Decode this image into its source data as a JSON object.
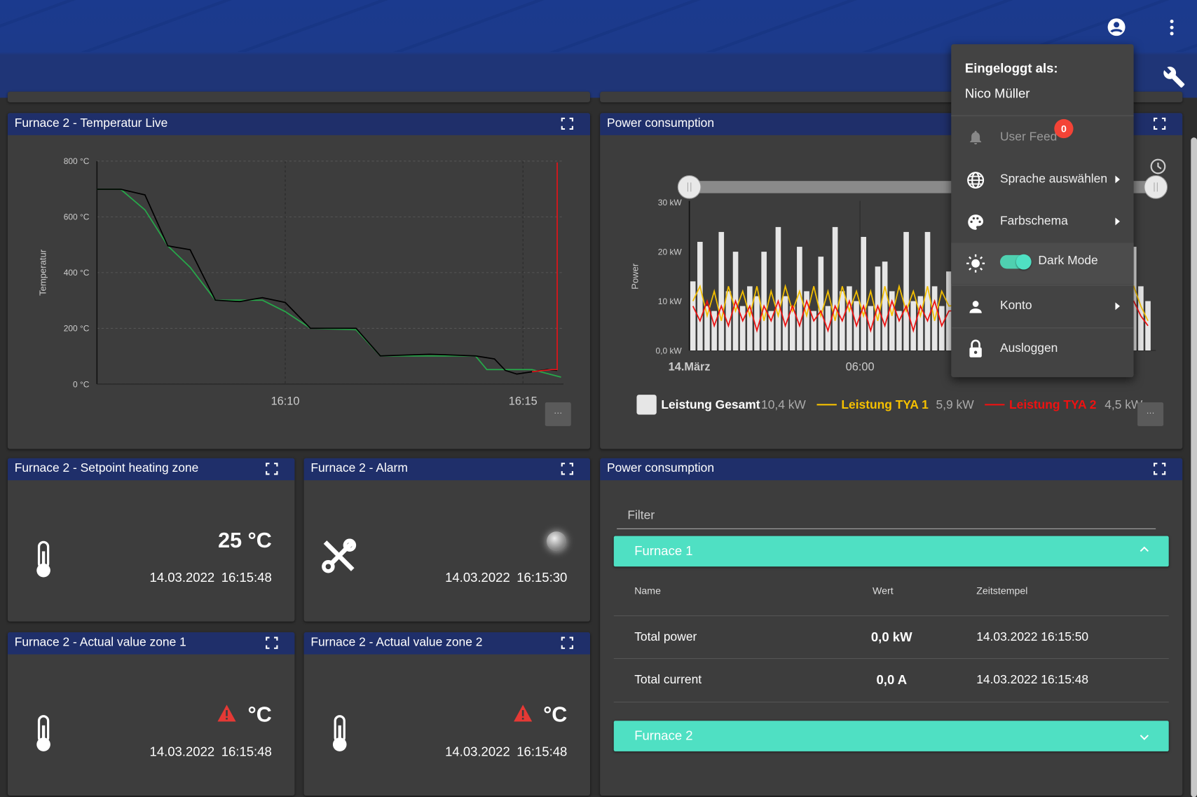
{
  "menu": {
    "heading": "Eingeloggt als:",
    "user": "Nico Müller",
    "items": [
      {
        "label": "User Feed",
        "badge": "0"
      },
      {
        "label": "Sprache auswählen"
      },
      {
        "label": "Farbschema"
      },
      {
        "label": "Dark Mode"
      },
      {
        "label": "Konto"
      },
      {
        "label": "Ausloggen"
      }
    ]
  },
  "chart_data": [
    {
      "type": "line",
      "title": "Furnace 2 - Temperatur Live",
      "y_label": "Temperatur",
      "xlim": [
        6.04,
        15.85
      ],
      "ylim": [
        0,
        800
      ],
      "xticks": [
        {
          "value": 10,
          "label": "16:10"
        },
        {
          "value": 15,
          "label": "16:15"
        }
      ],
      "yticks": [
        {
          "value": 0,
          "label": "0 °C"
        },
        {
          "value": 200,
          "label": "200 °C"
        },
        {
          "value": 400,
          "label": "400 °C"
        },
        {
          "value": 600,
          "label": "600 °C"
        },
        {
          "value": 800,
          "label": "800 °C"
        }
      ],
      "grid": true,
      "series": [
        {
          "color": "#27a84a",
          "x": [
            6.04,
            6.54,
            7.05,
            7.53,
            8.0,
            8.53,
            9.52,
            10.0,
            10.53,
            11.49,
            12.0,
            14.0,
            14.24,
            15.19,
            15.8
          ],
          "values": [
            699,
            699,
            625,
            496,
            419,
            301,
            301,
            260,
            200,
            195,
            101,
            101,
            52,
            52,
            25
          ]
        },
        {
          "color": "#000000",
          "x": [
            6.04,
            6.54,
            7.05,
            7.53,
            8.0,
            8.53,
            9.04,
            9.52,
            10.0,
            10.53,
            11.49,
            12.0,
            13.04,
            14.0,
            14.4,
            14.63,
            14.87,
            15.19,
            15.51,
            15.72
          ],
          "values": [
            699,
            699,
            679,
            496,
            482,
            301,
            296,
            310,
            293,
            200,
            200,
            101,
            107,
            101,
            90,
            49,
            36,
            44,
            52,
            49
          ]
        },
        {
          "color": "#e0141a",
          "x": [
            15.19,
            15.6,
            15.72,
            15.72
          ],
          "values": [
            44,
            52,
            52,
            795
          ]
        }
      ]
    },
    {
      "type": "bar",
      "title": "Power consumption",
      "y_label": "Power",
      "xlim": [
        0,
        16.4
      ],
      "ylim": [
        0,
        30
      ],
      "xticks": [
        {
          "value": 0,
          "label": "14.März"
        },
        {
          "value": 6,
          "label": "06:00"
        }
      ],
      "yticks": [
        {
          "value": 0,
          "label": "0,0 kW"
        },
        {
          "value": 10,
          "label": "10 kW"
        },
        {
          "value": 20,
          "label": "20 kW"
        },
        {
          "value": 30,
          "label": "30 kW"
        }
      ],
      "grid": false,
      "x": [
        0.125,
        0.375,
        0.625,
        0.875,
        1.125,
        1.375,
        1.625,
        1.875,
        2.125,
        2.375,
        2.625,
        2.875,
        3.125,
        3.375,
        3.625,
        3.875,
        4.125,
        4.375,
        4.625,
        4.875,
        5.125,
        5.375,
        5.625,
        5.875,
        6.125,
        6.375,
        6.625,
        6.875,
        7.125,
        7.375,
        7.625,
        7.875,
        8.125,
        8.375,
        8.625,
        8.875,
        9.125,
        15.625,
        15.875,
        16.125
      ],
      "series": [
        {
          "name": "Leistung Gesamt",
          "kind": "bar",
          "color": "#e6e6e6",
          "legend_value": "10,4 kW",
          "values": [
            14,
            22,
            9,
            8,
            24,
            12,
            20,
            9,
            13,
            11,
            20,
            8,
            25,
            11,
            9,
            21,
            12,
            8,
            19,
            9,
            25,
            12,
            13,
            10,
            23,
            9,
            17,
            18,
            12,
            8,
            24,
            10,
            11,
            24,
            13,
            9,
            16,
            21,
            13,
            10
          ]
        },
        {
          "name": "Leistung TYA 1",
          "kind": "line",
          "color": "#f5c000",
          "legend_value": "5,9 kW",
          "values": [
            10,
            13,
            7,
            12,
            6,
            13,
            8,
            12,
            7,
            13,
            6,
            12,
            7,
            13,
            8,
            12,
            7,
            13,
            7,
            12,
            6,
            13,
            8,
            12,
            7,
            12,
            6,
            13,
            7,
            13,
            8,
            12,
            7,
            13,
            6,
            12,
            9,
            13,
            9,
            6
          ]
        },
        {
          "name": "Leistung TYA 2",
          "kind": "line",
          "color": "#ee1111",
          "legend_value": "4,5 kW",
          "values": [
            9,
            6,
            10,
            5,
            9,
            5,
            10,
            6,
            9,
            4,
            9,
            6,
            10,
            5,
            9,
            5,
            10,
            6,
            8,
            4,
            9,
            6,
            10,
            5,
            9,
            4,
            9,
            5,
            10,
            6,
            9,
            4,
            9,
            6,
            10,
            5,
            8,
            10,
            7,
            5
          ]
        }
      ]
    }
  ],
  "tiles": [
    {
      "title": "Furnace 2 - Setpoint heating zone",
      "value": "25 °C",
      "timestamp": "14.03.2022 16:15:48"
    },
    {
      "title": "Furnace 2 - Alarm",
      "timestamp": "14.03.2022 16:15:30"
    },
    {
      "title": "Furnace 2 - Actual value zone 1",
      "value": "°C",
      "timestamp": "14.03.2022 16:15:48"
    },
    {
      "title": "Furnace 2 - Actual value zone 2",
      "value": "°C",
      "timestamp": "14.03.2022 16:15:48"
    }
  ],
  "table": {
    "title": "Power consumption",
    "filter": "Filter",
    "columns": [
      "Name",
      "Wert",
      "Zeitstempel"
    ],
    "groups": [
      {
        "name": "Furnace 1",
        "rows": [
          [
            "Total power",
            "0,0 kW",
            "14.03.2022 16:15:50"
          ],
          [
            "Total current",
            "0,0 A",
            "14.03.2022 16:15:48"
          ]
        ]
      },
      {
        "name": "Furnace 2"
      }
    ]
  }
}
